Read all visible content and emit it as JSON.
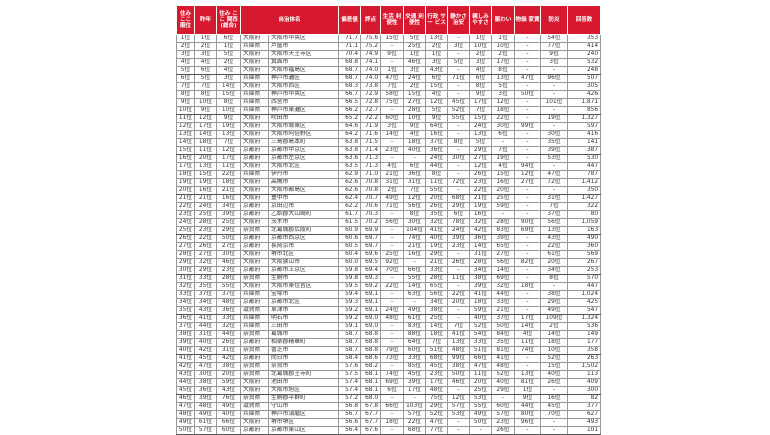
{
  "colors": {
    "header_bg": "#d7192f",
    "header_text": "#ffffff"
  },
  "headers": [
    "住み ここ 順位",
    "昨年",
    "住み ここ 関西 (総合)",
    "自治体名",
    "偏差値",
    "評点",
    "生活 利便性",
    "交通 利便性",
    "行政 サー ビス",
    "静かさ 治安",
    "親しみ やすさ",
    "賑わい",
    "物価 家賃",
    "防災",
    "回答数"
  ],
  "rows": [
    [
      "1位",
      "1位",
      "6位",
      "大阪府",
      "大阪市中央区",
      "71.7",
      "75.6",
      "15位",
      "5位",
      "13位",
      "-",
      "1位",
      "1位",
      "-",
      "54位",
      "353"
    ],
    [
      "2位",
      "2位",
      "1位",
      "兵庫県",
      "芦屋市",
      "71.1",
      "75.2",
      "-",
      "25位",
      "2位",
      "3位",
      "10位",
      "10位",
      "-",
      "77位",
      "414"
    ],
    [
      "3位",
      "3位",
      "5位",
      "大阪府",
      "大阪市天王寺区",
      "70.4",
      "74.9",
      "9位",
      "1位",
      "1位",
      "-",
      "2位",
      "2位",
      "-",
      "9位",
      "240"
    ],
    [
      "4位",
      "4位",
      "2位",
      "大阪府",
      "箕面市",
      "68.8",
      "74.1",
      "-",
      "46位",
      "3位",
      "5位",
      "3位",
      "17位",
      "-",
      "3位",
      "532"
    ],
    [
      "5位",
      "6位",
      "4位",
      "大阪府",
      "大阪市福島区",
      "68.7",
      "74.0",
      "1位",
      "3位",
      "43位",
      "-",
      "4位",
      "8位",
      "-",
      "-",
      "248"
    ],
    [
      "6位",
      "5位",
      "3位",
      "兵庫県",
      "神戸市灘区",
      "68.7",
      "74.0",
      "47位",
      "24位",
      "6位",
      "71位",
      "6位",
      "13位",
      "47位",
      "96位",
      "507"
    ],
    [
      "7位",
      "7位",
      "14位",
      "大阪府",
      "大阪市西区",
      "68.3",
      "73.8",
      "7位",
      "2位",
      "15位",
      "-",
      "8位",
      "5位",
      "-",
      "-",
      "305"
    ],
    [
      "8位",
      "8位",
      "15位",
      "兵庫県",
      "神戸市中央区",
      "66.7",
      "72.9",
      "58位",
      "15位",
      "4位",
      "-",
      "9位",
      "3位",
      "50位",
      "-",
      "426"
    ],
    [
      "9位",
      "10位",
      "8位",
      "兵庫県",
      "西宮市",
      "66.5",
      "72.8",
      "75位",
      "27位",
      "12位",
      "45位",
      "17位",
      "12位",
      "-",
      "101位",
      "1,871"
    ],
    [
      "10位",
      "9位",
      "10位",
      "兵庫県",
      "神戸市東灘区",
      "66.2",
      "72.7",
      "-",
      "28位",
      "5位",
      "52位",
      "7位",
      "18位",
      "-",
      "-",
      "856"
    ],
    [
      "11位",
      "12位",
      "9位",
      "大阪府",
      "吹田市",
      "65.2",
      "72.2",
      "60位",
      "10位",
      "9位",
      "55位",
      "15位",
      "22位",
      "-",
      "19位",
      "1,327"
    ],
    [
      "12位",
      "17位",
      "19位",
      "大阪府",
      "大阪市城東区",
      "64.6",
      "71.9",
      "3位",
      "9位",
      "64位",
      "-",
      "24位",
      "30位",
      "99位",
      "-",
      "597"
    ],
    [
      "13位",
      "14位",
      "13位",
      "大阪府",
      "大阪市阿倍野区",
      "64.2",
      "71.6",
      "14位",
      "4位",
      "16位",
      "-",
      "13位",
      "6位",
      "-",
      "30位",
      "416"
    ],
    [
      "14位",
      "18位",
      "7位",
      "大阪府",
      "三島郡島本町",
      "63.8",
      "71.5",
      "-",
      "18位",
      "37位",
      "8位",
      "5位",
      "-",
      "-",
      "35位",
      "141"
    ],
    [
      "15位",
      "11位",
      "12位",
      "京都府",
      "京都市中京区",
      "63.8",
      "71.4",
      "23位",
      "40位",
      "36位",
      "-",
      "29位",
      "7位",
      "-",
      "39位",
      "387"
    ],
    [
      "16位",
      "20位",
      "17位",
      "京都府",
      "京都市左京区",
      "63.6",
      "71.3",
      "-",
      "-",
      "24位",
      "30位",
      "27位",
      "19位",
      "-",
      "53位",
      "530"
    ],
    [
      "17位",
      "13位",
      "11位",
      "大阪府",
      "大阪市北区",
      "63.5",
      "71.3",
      "4位",
      "6位",
      "44位",
      "-",
      "12位",
      "4位",
      "94位",
      "-",
      "447"
    ],
    [
      "18位",
      "15位",
      "22位",
      "兵庫県",
      "伊丹市",
      "62.9",
      "71.0",
      "21位",
      "36位",
      "8位",
      "-",
      "26位",
      "15位",
      "12位",
      "47位",
      "787"
    ],
    [
      "19位",
      "19位",
      "18位",
      "大阪府",
      "高槻市",
      "62.6",
      "70.8",
      "31位",
      "31位",
      "11位",
      "72位",
      "23位",
      "16位",
      "27位",
      "72位",
      "1,412"
    ],
    [
      "20位",
      "16位",
      "21位",
      "大阪府",
      "大阪市都島区",
      "62.6",
      "70.8",
      "2位",
      "7位",
      "55位",
      "-",
      "22位",
      "20位",
      "-",
      "-",
      "350"
    ],
    [
      "21位",
      "21位",
      "16位",
      "大阪府",
      "豊中市",
      "62.4",
      "70.7",
      "49位",
      "12位",
      "20位",
      "68位",
      "21位",
      "25位",
      "-",
      "31位",
      "1,427"
    ],
    [
      "22位",
      "24位",
      "34位",
      "京都府",
      "京田辺市",
      "62.2",
      "70.6",
      "71位",
      "56位",
      "26位",
      "29位",
      "19位",
      "59位",
      "-",
      "7位",
      "322"
    ],
    [
      "23位",
      "25位",
      "39位",
      "京都府",
      "乙訓郡大山崎町",
      "61.7",
      "70.3",
      "-",
      "8位",
      "35位",
      "6位",
      "16位",
      "-",
      "-",
      "37位",
      "80"
    ],
    [
      "24位",
      "28位",
      "25位",
      "大阪府",
      "茨木市",
      "61.5",
      "70.2",
      "56位",
      "30位",
      "32位",
      "78位",
      "32位",
      "28位",
      "90位",
      "56位",
      "1,059"
    ],
    [
      "25位",
      "23位",
      "29位",
      "奈良県",
      "北葛城郡広陵町",
      "60.9",
      "69.9",
      "-",
      "104位",
      "41位",
      "24位",
      "42位",
      "83位",
      "69位",
      "13位",
      "163"
    ],
    [
      "26位",
      "22位",
      "50位",
      "京都府",
      "京都市西京区",
      "60.6",
      "69.7",
      "-",
      "74位",
      "40位",
      "39位",
      "36位",
      "39位",
      "-",
      "43位",
      "490"
    ],
    [
      "27位",
      "26位",
      "27位",
      "京都府",
      "長岡京市",
      "60.5",
      "69.7",
      "-",
      "21位",
      "19位",
      "23位",
      "14位",
      "65位",
      "-",
      "22位",
      "360"
    ],
    [
      "28位",
      "27位",
      "30位",
      "大阪府",
      "堺市北区",
      "60.4",
      "69.6",
      "25位",
      "16位",
      "29位",
      "-",
      "31位",
      "27位",
      "-",
      "61位",
      "569"
    ],
    [
      "29位",
      "32位",
      "46位",
      "大阪府",
      "大阪狭山市",
      "60.0",
      "69.5",
      "92位",
      "-",
      "21位",
      "26位",
      "28位",
      "56位",
      "82位",
      "20位",
      "267"
    ],
    [
      "30位",
      "29位",
      "23位",
      "京都府",
      "京都市上京区",
      "59.8",
      "69.4",
      "70位",
      "66位",
      "33位",
      "-",
      "34位",
      "14位",
      "-",
      "34位",
      "253"
    ],
    [
      "31位",
      "33位",
      "28位",
      "奈良県",
      "生駒市",
      "59.8",
      "69.3",
      "-",
      "55位",
      "28位",
      "11位",
      "38位",
      "69位",
      "-",
      "8位",
      "570"
    ],
    [
      "32位",
      "35位",
      "55位",
      "大阪府",
      "大阪市東住吉区",
      "59.5",
      "69.2",
      "22位",
      "14位",
      "65位",
      "-",
      "39位",
      "32位",
      "18位",
      "-",
      "447"
    ],
    [
      "33位",
      "37位",
      "37位",
      "兵庫県",
      "宝塚市",
      "59.4",
      "69.1",
      "-",
      "63位",
      "56位",
      "22位",
      "41位",
      "44位",
      "-",
      "38位",
      "1,024"
    ],
    [
      "34位",
      "34位",
      "48位",
      "京都府",
      "京都市北区",
      "59.3",
      "69.1",
      "-",
      "-",
      "34位",
      "20位",
      "18位",
      "33位",
      "-",
      "29位",
      "425"
    ],
    [
      "35位",
      "43位",
      "36位",
      "滋賀県",
      "草津市",
      "59.2",
      "69.1",
      "24位",
      "49位",
      "38位",
      "-",
      "59位",
      "21位",
      "-",
      "49位",
      "547"
    ],
    [
      "36位",
      "41位",
      "33位",
      "兵庫県",
      "明石市",
      "59.2",
      "69.0",
      "48位",
      "61位",
      "25位",
      "-",
      "40位",
      "37位",
      "17位",
      "109位",
      "1,324"
    ],
    [
      "37位",
      "44位",
      "32位",
      "兵庫県",
      "三田市",
      "59.1",
      "69.0",
      "-",
      "83位",
      "14位",
      "7位",
      "52位",
      "50位",
      "14位",
      "2位",
      "536"
    ],
    [
      "38位",
      "31位",
      "44位",
      "奈良県",
      "葛城市",
      "58.7",
      "68.8",
      "-",
      "88位",
      "18位",
      "41位",
      "54位",
      "84位",
      "4位",
      "14位",
      "149"
    ],
    [
      "39位",
      "40位",
      "26位",
      "京都府",
      "相楽郡精華町",
      "58.7",
      "68.8",
      "-",
      "64位",
      "7位",
      "13位",
      "33位",
      "35位",
      "11位",
      "18位",
      "177"
    ],
    [
      "40位",
      "42位",
      "31位",
      "奈良県",
      "香芝市",
      "58.7",
      "68.8",
      "79位",
      "60位",
      "51位",
      "48位",
      "51位",
      "81位",
      "74位",
      "10位",
      "358"
    ],
    [
      "41位",
      "45位",
      "42位",
      "京都府",
      "向日市",
      "58.4",
      "68.6",
      "73位",
      "33位",
      "68位",
      "99位",
      "66位",
      "41位",
      "-",
      "52位",
      "263"
    ],
    [
      "42位",
      "47位",
      "38位",
      "奈良県",
      "奈良市",
      "57.6",
      "68.2",
      "-",
      "85位",
      "45位",
      "38位",
      "47位",
      "48位",
      "-",
      "15位",
      "1,502"
    ],
    [
      "43位",
      "30位",
      "20位",
      "奈良県",
      "北葛城郡王寺町",
      "57.5",
      "68.1",
      "74位",
      "45位",
      "23位",
      "50位",
      "11位",
      "52位",
      "13位",
      "40位",
      "113"
    ],
    [
      "44位",
      "38位",
      "59位",
      "大阪府",
      "池田市",
      "57.4",
      "68.1",
      "69位",
      "39位",
      "17位",
      "46位",
      "20位",
      "40位",
      "81位",
      "26位",
      "409"
    ],
    [
      "45位",
      "36位",
      "43位",
      "大阪府",
      "大阪市旭区",
      "57.4",
      "68.1",
      "6位",
      "17位",
      "48位",
      "-",
      "25位",
      "29位",
      "1位",
      "-",
      "300"
    ],
    [
      "46位",
      "39位",
      "76位",
      "奈良県",
      "生駒郡平群町",
      "57.2",
      "68.0",
      "-",
      "-",
      "75位",
      "12位",
      "53位",
      "-",
      "9位",
      "16位",
      "82"
    ],
    [
      "47位",
      "48位",
      "49位",
      "滋賀県",
      "守山市",
      "56.8",
      "67.8",
      "66位",
      "103位",
      "29位",
      "57位",
      "55位",
      "60位",
      "44位",
      "45位",
      "377"
    ],
    [
      "48位",
      "49位",
      "40位",
      "兵庫県",
      "神戸市須磨区",
      "56.7",
      "67.7",
      "-",
      "57位",
      "52位",
      "53位",
      "49位",
      "57位",
      "80位",
      "70位",
      "627"
    ],
    [
      "49位",
      "61位",
      "66位",
      "大阪府",
      "堺市堺区",
      "56.6",
      "67.7",
      "18位",
      "22位",
      "47位",
      "-",
      "50位",
      "23位",
      "96位",
      "-",
      "493"
    ],
    [
      "50位",
      "57位",
      "60位",
      "京都府",
      "京都市東山区",
      "56.4",
      "67.6",
      "-",
      "68位",
      "77位",
      "-",
      "-",
      "26位",
      "-",
      "-",
      "101"
    ]
  ]
}
